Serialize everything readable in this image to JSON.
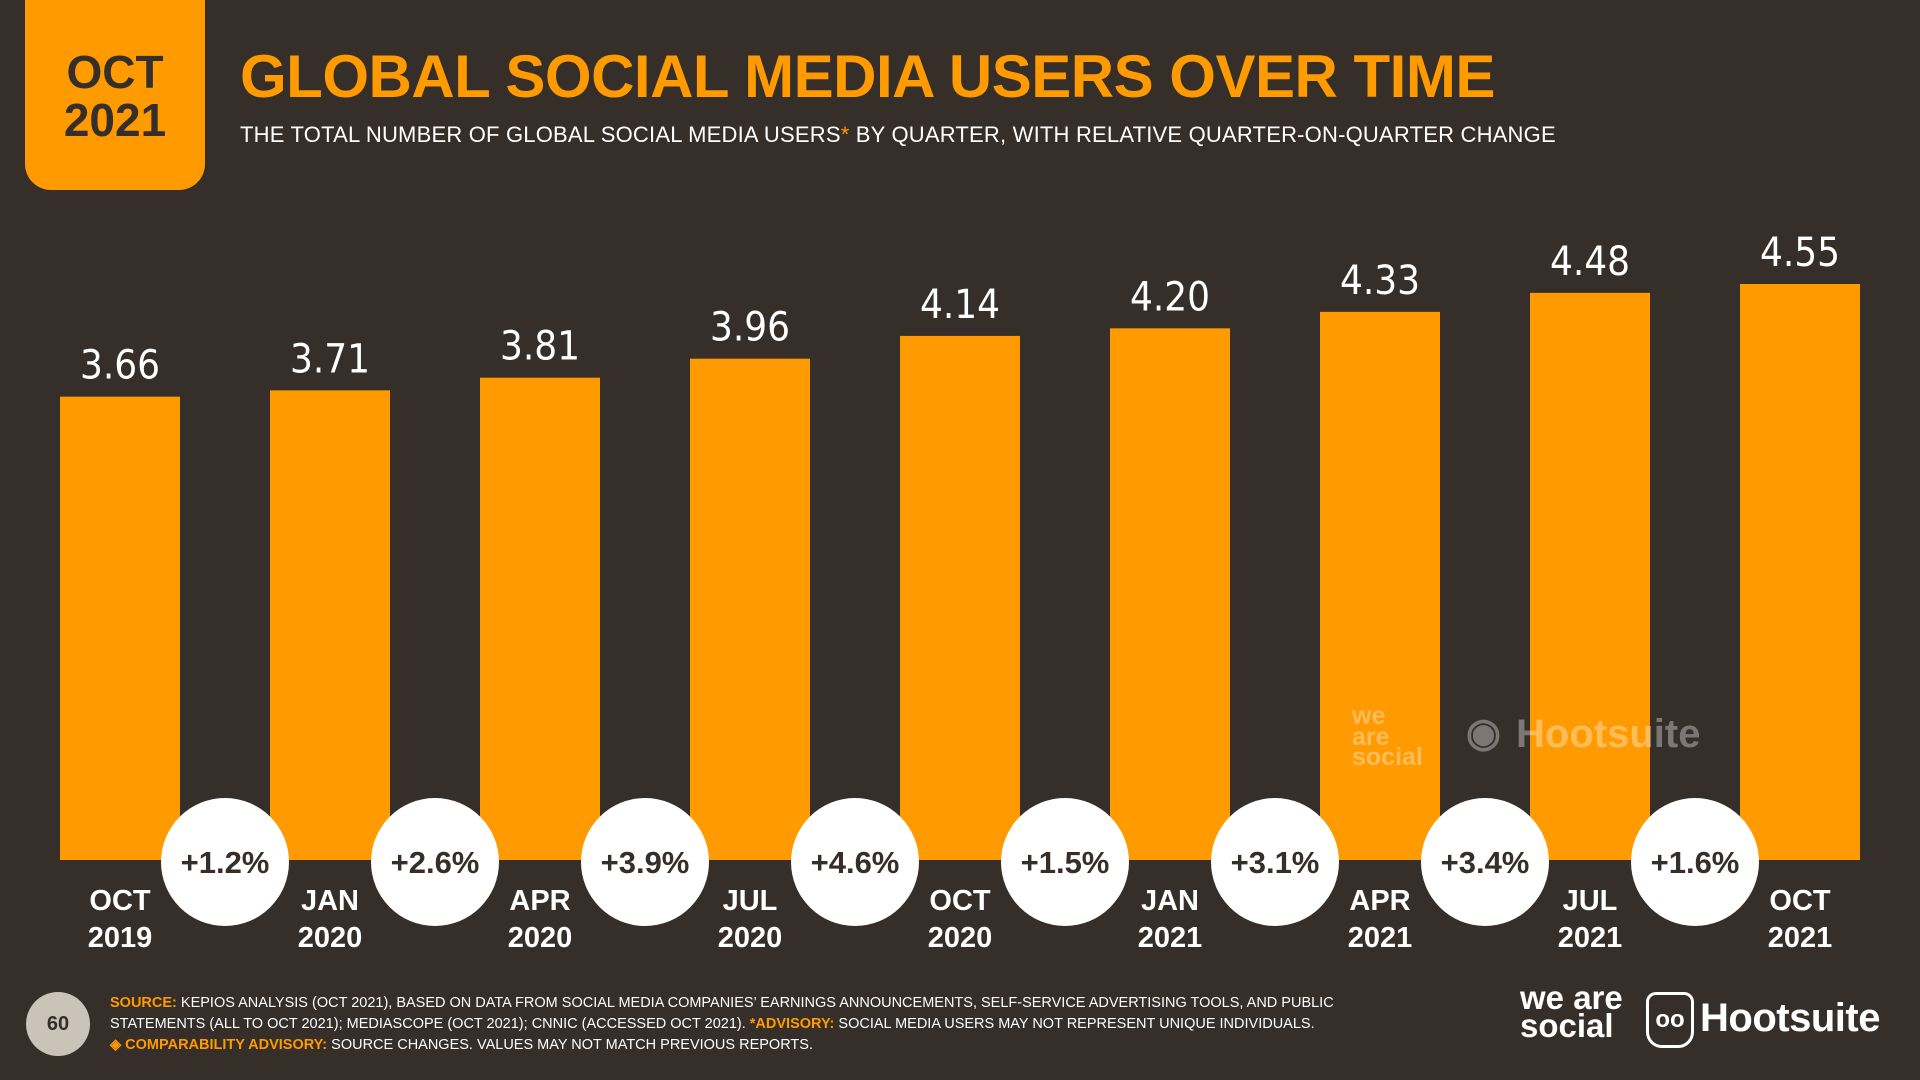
{
  "badge": {
    "month": "OCT",
    "year": "2021"
  },
  "header": {
    "title": "GLOBAL SOCIAL MEDIA USERS OVER TIME",
    "subtitle_main": "THE TOTAL NUMBER OF GLOBAL SOCIAL MEDIA USERS",
    "subtitle_asterisk": "*",
    "subtitle_rest": " BY QUARTER, WITH RELATIVE QUARTER-ON-QUARTER CHANGE"
  },
  "colors": {
    "background": "#352e29",
    "accent": "#ff9a00",
    "bubble": "#ffffff",
    "text": "#ffffff"
  },
  "chart_data": {
    "type": "bar",
    "categories": [
      "OCT 2019",
      "JAN 2020",
      "APR 2020",
      "JUL 2020",
      "OCT 2020",
      "JAN 2021",
      "APR 2021",
      "JUL 2021",
      "OCT 2021"
    ],
    "category_lines": [
      [
        "OCT",
        "2019"
      ],
      [
        "JAN",
        "2020"
      ],
      [
        "APR",
        "2020"
      ],
      [
        "JUL",
        "2020"
      ],
      [
        "OCT",
        "2020"
      ],
      [
        "JAN",
        "2021"
      ],
      [
        "APR",
        "2021"
      ],
      [
        "JUL",
        "2021"
      ],
      [
        "OCT",
        "2021"
      ]
    ],
    "values": [
      3.66,
      3.71,
      3.81,
      3.96,
      4.14,
      4.2,
      4.33,
      4.48,
      4.55
    ],
    "value_labels": [
      "3.66",
      "3.71",
      "3.81",
      "3.96",
      "4.14",
      "4.20",
      "4.33",
      "4.48",
      "4.55"
    ],
    "changes": [
      "+1.2%",
      "+2.6%",
      "+3.9%",
      "+4.6%",
      "+1.5%",
      "+3.1%",
      "+3.4%",
      "+1.6%"
    ],
    "ylim": [
      0,
      4.55
    ],
    "grid": false
  },
  "watermark": {
    "we_are_social": "we are social",
    "hootsuite": "Hootsuite"
  },
  "footer": {
    "page_number": "60",
    "source_label": "SOURCE:",
    "source_text": " KEPIOS ANALYSIS (OCT 2021), BASED ON DATA FROM SOCIAL MEDIA COMPANIES’ EARNINGS ANNOUNCEMENTS, SELF-SERVICE ADVERTISING TOOLS, AND PUBLIC STATEMENTS (ALL TO OCT 2021); MEDIASCOPE (OCT 2021); CNNIC (ACCESSED OCT 2021). ",
    "advisory_label": "*ADVISORY:",
    "advisory_text": " SOCIAL MEDIA USERS MAY NOT REPRESENT UNIQUE INDIVIDUALS.",
    "comparability_label": "◈ COMPARABILITY ADVISORY:",
    "comparability_text": " SOURCE CHANGES. VALUES MAY NOT MATCH PREVIOUS REPORTS."
  },
  "logos": {
    "we_are_social": "we are social",
    "hootsuite": "Hootsuite",
    "owl_glyph": "oo"
  }
}
